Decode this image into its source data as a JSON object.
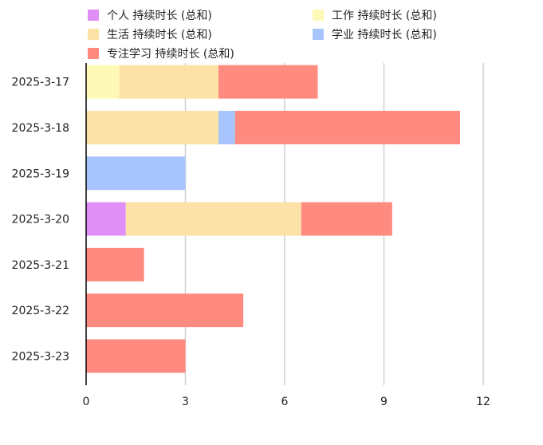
{
  "chart_data": {
    "type": "bar",
    "orientation": "horizontal",
    "stacked": true,
    "categories": [
      "2025-3-17",
      "2025-3-18",
      "2025-3-19",
      "2025-3-20",
      "2025-3-21",
      "2025-3-22",
      "2025-3-23"
    ],
    "series": [
      {
        "name": "个人 持续时长 (总和)",
        "color": "#e08ff7",
        "values": [
          0,
          0,
          0,
          1.2,
          0,
          0,
          0
        ]
      },
      {
        "name": "工作 持续时长 (总和)",
        "color": "#fff9b8",
        "values": [
          1.0,
          0,
          0,
          0,
          0,
          0,
          0
        ]
      },
      {
        "name": "生活 持续时长 (总和)",
        "color": "#fde2a7",
        "values": [
          3.0,
          4.0,
          0,
          5.3,
          0,
          0,
          0
        ]
      },
      {
        "name": "学业 持续时长 (总和)",
        "color": "#a8c4fd",
        "values": [
          0,
          0.5,
          3.0,
          0,
          0,
          0,
          0
        ]
      },
      {
        "name": "专注学习 持续时长 (总和)",
        "color": "#ff8a80",
        "values": [
          3.0,
          6.8,
          0,
          2.75,
          1.75,
          4.75,
          3.0
        ]
      }
    ],
    "xlim": [
      0,
      13.3
    ],
    "xticks": [
      0,
      3,
      6,
      9,
      12
    ],
    "grid": true,
    "legend_position": "top"
  }
}
